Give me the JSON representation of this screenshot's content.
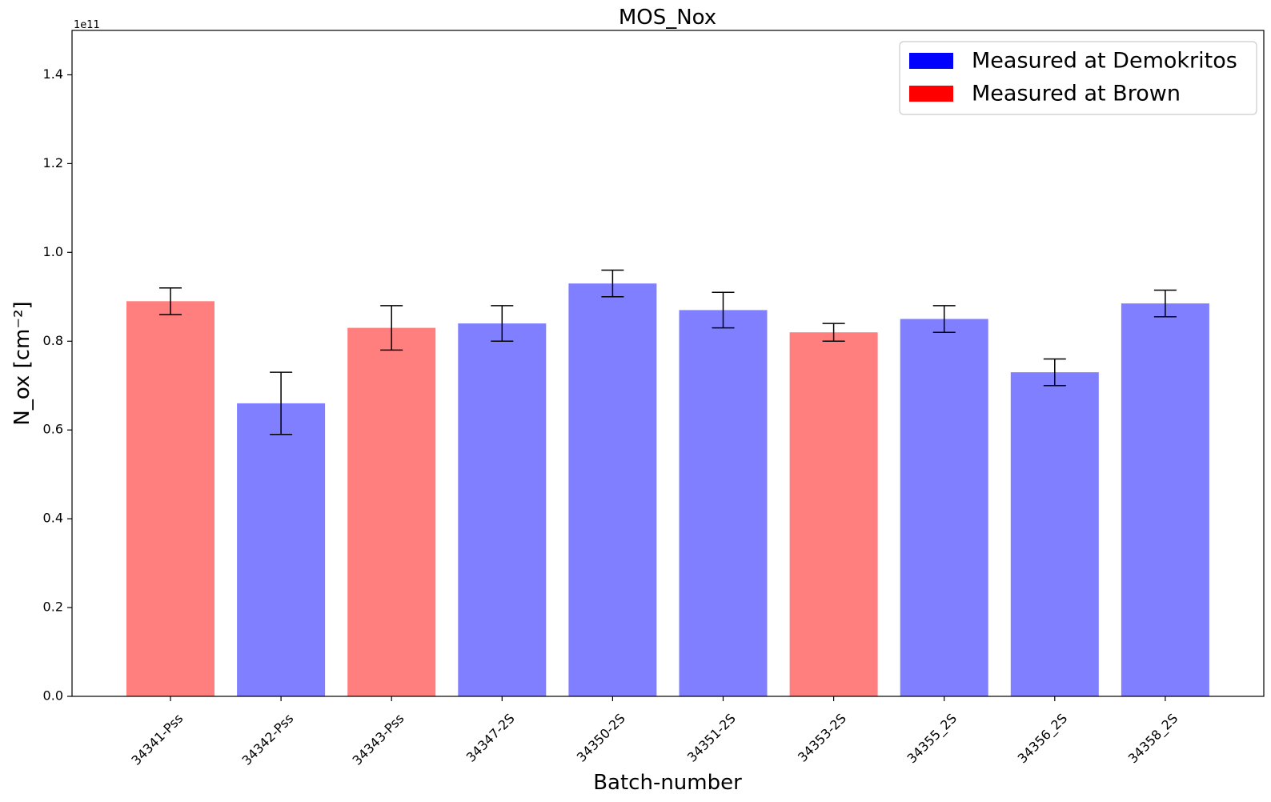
{
  "chart_data": {
    "type": "bar",
    "title": "MOS_Nox",
    "xlabel": "Batch-number",
    "ylabel": "N_ox [cm⁻²]",
    "y_offset_label": "1e11",
    "ylim": [
      0,
      1.5
    ],
    "yticks": [
      "0.0",
      "0.2",
      "0.4",
      "0.6",
      "0.8",
      "1.0",
      "1.2",
      "1.4"
    ],
    "categories": [
      "34341-Pss",
      "34342-Pss",
      "34343-Pss",
      "34347-2S",
      "34350-2S",
      "34351-2S",
      "34353-2S",
      "34355_2S",
      "34356_2S",
      "34358_2S"
    ],
    "values": [
      0.89,
      0.66,
      0.83,
      0.84,
      0.93,
      0.87,
      0.82,
      0.85,
      0.73,
      0.885
    ],
    "errors": [
      0.03,
      0.07,
      0.05,
      0.04,
      0.03,
      0.04,
      0.02,
      0.03,
      0.03,
      0.03
    ],
    "groups": [
      "Brown",
      "Demokritos",
      "Brown",
      "Demokritos",
      "Demokritos",
      "Demokritos",
      "Brown",
      "Demokritos",
      "Demokritos",
      "Demokritos"
    ],
    "series": [
      {
        "key": "Demokritos",
        "name": "Measured at Demokritos",
        "color": "#0000ff"
      },
      {
        "key": "Brown",
        "name": "Measured at Brown",
        "color": "#ff0000"
      }
    ],
    "bar_alpha": 0.5,
    "grid": false,
    "legend_position": "top-right"
  }
}
